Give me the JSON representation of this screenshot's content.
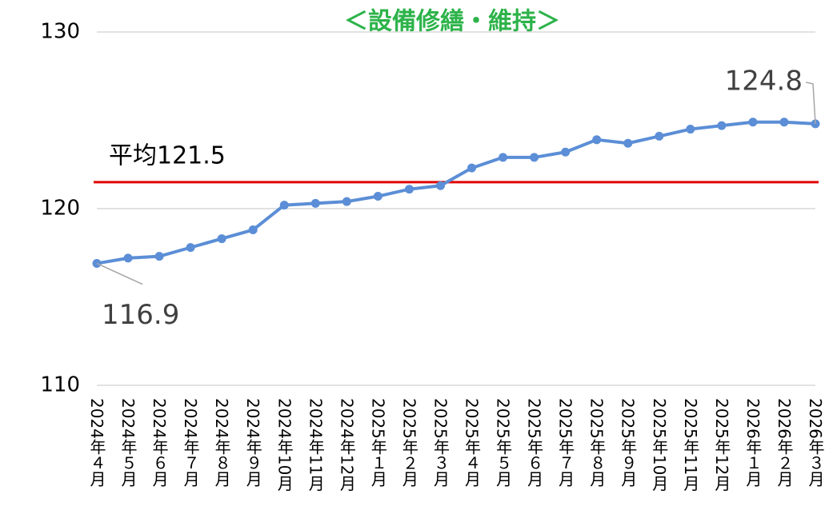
{
  "chart_data": {
    "type": "line",
    "title": "＜設備修繕・維持＞",
    "categories": [
      "2024年４月",
      "2024年５月",
      "2024年６月",
      "2024年７月",
      "2024年８月",
      "2024年９月",
      "2024年10月",
      "2024年11月",
      "2024年12月",
      "2025年１月",
      "2025年２月",
      "2025年３月",
      "2025年４月",
      "2025年５月",
      "2025年６月",
      "2025年７月",
      "2025年８月",
      "2025年９月",
      "2025年10月",
      "2025年11月",
      "2025年12月",
      "2026年１月",
      "2026年２月",
      "2026年３月"
    ],
    "series": [
      {
        "color": "#5b8ed6",
        "values": [
          116.9,
          117.2,
          117.3,
          117.8,
          118.3,
          118.8,
          120.2,
          120.3,
          120.4,
          120.7,
          121.1,
          121.3,
          122.3,
          122.9,
          122.9,
          123.2,
          123.9,
          123.7,
          124.1,
          124.5,
          124.7,
          124.9,
          124.9,
          124.8
        ],
        "value_labels": [
          "116.9",
          null,
          null,
          null,
          null,
          null,
          null,
          null,
          null,
          null,
          null,
          null,
          null,
          null,
          null,
          null,
          null,
          null,
          null,
          null,
          null,
          null,
          null,
          "124.8"
        ]
      }
    ],
    "average": {
      "value": 121.5,
      "label": "平均121.5",
      "color": "#e00000"
    },
    "ylim": [
      110,
      130
    ],
    "yticks": [
      110,
      120,
      130
    ],
    "grid": true
  }
}
